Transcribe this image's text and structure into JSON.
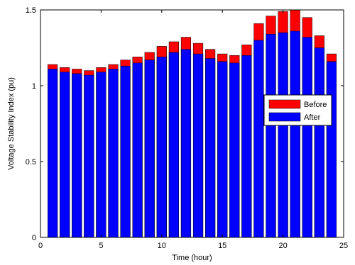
{
  "chart_data": {
    "type": "bar",
    "x": [
      1,
      2,
      3,
      4,
      5,
      6,
      7,
      8,
      9,
      10,
      11,
      12,
      13,
      14,
      15,
      16,
      17,
      18,
      19,
      20,
      21,
      22,
      23,
      24
    ],
    "series": [
      {
        "name": "Before",
        "color": "#ff0000",
        "values": [
          1.14,
          1.12,
          1.11,
          1.1,
          1.12,
          1.14,
          1.17,
          1.19,
          1.22,
          1.26,
          1.29,
          1.32,
          1.28,
          1.24,
          1.21,
          1.2,
          1.27,
          1.41,
          1.46,
          1.49,
          1.5,
          1.45,
          1.33,
          1.21
        ]
      },
      {
        "name": "After",
        "color": "#0000ff",
        "values": [
          1.11,
          1.09,
          1.08,
          1.07,
          1.09,
          1.11,
          1.13,
          1.15,
          1.17,
          1.19,
          1.22,
          1.24,
          1.21,
          1.18,
          1.16,
          1.15,
          1.2,
          1.3,
          1.34,
          1.35,
          1.36,
          1.32,
          1.25,
          1.16
        ]
      }
    ],
    "xlabel": "Time (hour)",
    "ylabel": "Voltage Stability Index  (pu)",
    "xlim": [
      0,
      25
    ],
    "ylim": [
      0,
      1.5
    ],
    "xticks": [
      0,
      5,
      10,
      15,
      20,
      25
    ],
    "yticks": [
      0,
      0.5,
      1,
      1.5
    ],
    "ytick_labels": [
      "0",
      "0.5",
      "1",
      "1.5"
    ],
    "grid": false,
    "legend_position": "right"
  }
}
